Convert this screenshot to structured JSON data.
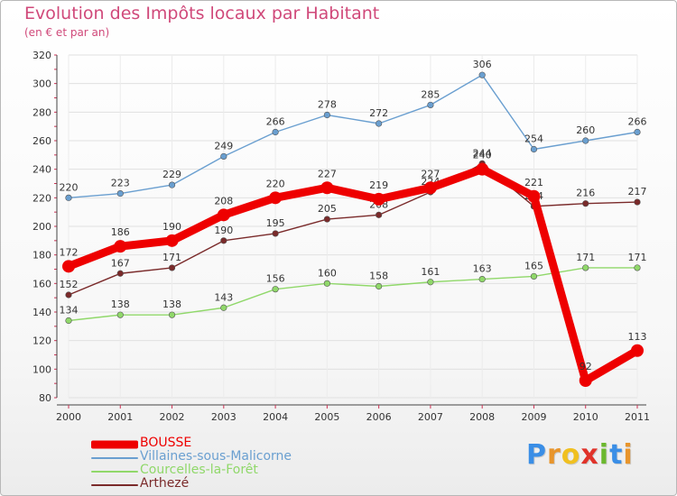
{
  "header": {
    "title": "Evolution des Impôts locaux par Habitant",
    "subtitle": "(en € et par an)"
  },
  "logo": {
    "letters": [
      "P",
      "r",
      "o",
      "x",
      "i",
      "t",
      "i"
    ],
    "colors": [
      "#3a8ee6",
      "#e8952c",
      "#f0c020",
      "#e0332a",
      "#6bb82e",
      "#3a8ee6",
      "#e8952c"
    ]
  },
  "colors": {
    "title": "#d0497a",
    "axis_text": "#333333",
    "grid": "#e0e0e0"
  },
  "chart_data": {
    "type": "line",
    "title": "Evolution des Impôts locaux par Habitant",
    "subtitle": "(en € et par an)",
    "xlabel": "",
    "ylabel": "",
    "x": [
      "2000",
      "2001",
      "2002",
      "2003",
      "2004",
      "2005",
      "2006",
      "2007",
      "2008",
      "2009",
      "2010",
      "2011"
    ],
    "ylim": [
      80,
      320
    ],
    "yticks": [
      80,
      100,
      120,
      140,
      160,
      180,
      200,
      220,
      240,
      260,
      280,
      300,
      320
    ],
    "grid": true,
    "legend_position": "bottom-left",
    "series": [
      {
        "name": "BOUSSE",
        "color": "#ee0000",
        "width": "thick",
        "values": [
          172,
          186,
          190,
          208,
          220,
          227,
          219,
          227,
          240,
          221,
          92,
          113
        ]
      },
      {
        "name": "Villaines-sous-Malicorne",
        "color": "#6a9fd0",
        "width": "thin",
        "values": [
          220,
          223,
          229,
          249,
          266,
          278,
          272,
          285,
          306,
          254,
          260,
          266
        ]
      },
      {
        "name": "Courcelles-la-Forêt",
        "color": "#90d86a",
        "width": "thin",
        "values": [
          134,
          138,
          138,
          143,
          156,
          160,
          158,
          161,
          163,
          165,
          171,
          171
        ]
      },
      {
        "name": "Arthezé",
        "color": "#7a2a2a",
        "width": "thin",
        "values": [
          152,
          167,
          171,
          190,
          195,
          205,
          208,
          224,
          244,
          214,
          216,
          217
        ]
      }
    ]
  }
}
